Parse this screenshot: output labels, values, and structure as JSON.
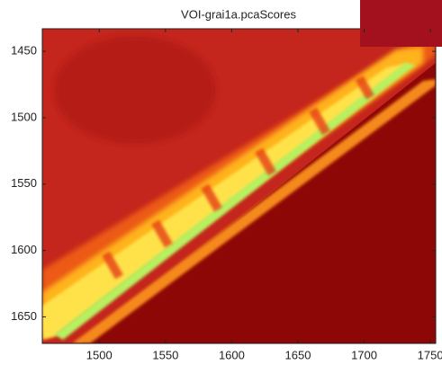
{
  "chart_data": {
    "type": "image",
    "title": "VOI-grai1a.pcaScores",
    "xlim": [
      1457,
      1754
    ],
    "xticks": [
      1500,
      1550,
      1600,
      1650,
      1700,
      1750
    ],
    "ylim": [
      1433,
      1670
    ],
    "yticks": [
      1450,
      1500,
      1550,
      1600,
      1650
    ],
    "y_reversed": true
  }
}
